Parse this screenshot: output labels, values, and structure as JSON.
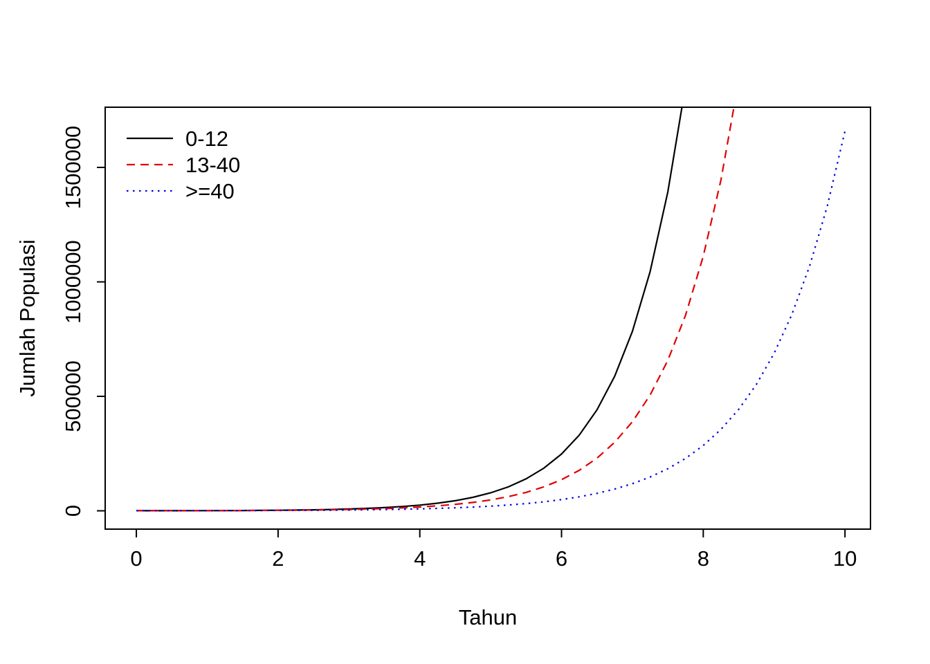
{
  "figure": {
    "background": "#ffffff",
    "axis_color": "#000000"
  },
  "chart_data": {
    "type": "line",
    "title": "",
    "xlabel": "Tahun",
    "ylabel": "Jumlah Populasi",
    "xlim": [
      -0.44,
      10.36
    ],
    "ylim": [
      -80000,
      1763000
    ],
    "x_ticks": [
      0,
      2,
      4,
      6,
      8,
      10
    ],
    "y_ticks": [
      0,
      500000,
      1000000,
      1500000
    ],
    "y_tick_labels": [
      "0",
      "500000",
      "1000000",
      "1500000"
    ],
    "grid": "off",
    "legend": {
      "position": "top-left"
    },
    "series": [
      {
        "name": "0-12",
        "color": "#000000",
        "linetype": "solid",
        "points": [
          [
            0,
            250
          ],
          [
            0.25,
            333
          ],
          [
            0.5,
            444
          ],
          [
            0.75,
            592
          ],
          [
            1,
            790
          ],
          [
            1.25,
            1053
          ],
          [
            1.5,
            1403
          ],
          [
            1.75,
            1870
          ],
          [
            2,
            2494
          ],
          [
            2.25,
            3324
          ],
          [
            2.5,
            4432
          ],
          [
            2.75,
            5908
          ],
          [
            3,
            7875
          ],
          [
            3.25,
            10498
          ],
          [
            3.5,
            13996
          ],
          [
            3.75,
            18657
          ],
          [
            4,
            24870
          ],
          [
            4.25,
            33156
          ],
          [
            4.5,
            44202
          ],
          [
            4.75,
            58928
          ],
          [
            5,
            78553
          ],
          [
            5.25,
            104716
          ],
          [
            5.5,
            139599
          ],
          [
            5.75,
            186106
          ],
          [
            6,
            248083
          ],
          [
            6.25,
            330721
          ],
          [
            6.5,
            440899
          ],
          [
            6.75,
            587771
          ],
          [
            7,
            783577
          ],
          [
            7.25,
            1044628
          ],
          [
            7.5,
            1392623
          ],
          [
            7.75,
            1856521
          ]
        ]
      },
      {
        "name": "13-40",
        "color": "#e00000",
        "linetype": "dashed",
        "points": [
          [
            0,
            250
          ],
          [
            0.25,
            325
          ],
          [
            0.5,
            423
          ],
          [
            0.75,
            549
          ],
          [
            1,
            714
          ],
          [
            1.25,
            929
          ],
          [
            1.5,
            1208
          ],
          [
            1.75,
            1570
          ],
          [
            2,
            2042
          ],
          [
            2.25,
            2654
          ],
          [
            2.5,
            3451
          ],
          [
            2.75,
            4487
          ],
          [
            3,
            5834
          ],
          [
            3.25,
            7585
          ],
          [
            3.5,
            9862
          ],
          [
            3.75,
            12822
          ],
          [
            4,
            16672
          ],
          [
            4.25,
            21676
          ],
          [
            4.5,
            28179
          ],
          [
            4.75,
            36643
          ],
          [
            5,
            47639
          ],
          [
            5.25,
            61941
          ],
          [
            5.5,
            80534
          ],
          [
            5.75,
            104712
          ],
          [
            6,
            136142
          ],
          [
            6.25,
            176950
          ],
          [
            6.5,
            230059
          ],
          [
            6.75,
            299085
          ],
          [
            7,
            388805
          ],
          [
            7.25,
            505444
          ],
          [
            7.5,
            657106
          ],
          [
            7.75,
            854270
          ],
          [
            8,
            1111770
          ],
          [
            8.25,
            1445305
          ],
          [
            8.5,
            1878869
          ]
        ]
      },
      {
        "name": ">=40",
        "color": "#0000dd",
        "linetype": "dotted",
        "points": [
          [
            0,
            250
          ],
          [
            0.25,
            312
          ],
          [
            0.5,
            388
          ],
          [
            0.75,
            484
          ],
          [
            1,
            603
          ],
          [
            1.25,
            751
          ],
          [
            1.5,
            936
          ],
          [
            1.75,
            1166
          ],
          [
            2,
            1453
          ],
          [
            2.25,
            1811
          ],
          [
            2.5,
            2256
          ],
          [
            2.75,
            2812
          ],
          [
            3,
            3503
          ],
          [
            3.25,
            4365
          ],
          [
            3.5,
            5439
          ],
          [
            3.75,
            6778
          ],
          [
            4,
            8445
          ],
          [
            4.25,
            10524
          ],
          [
            4.5,
            13114
          ],
          [
            4.75,
            16342
          ],
          [
            5,
            20363
          ],
          [
            5.25,
            25370
          ],
          [
            5.5,
            31617
          ],
          [
            5.75,
            39394
          ],
          [
            6,
            49096
          ],
          [
            6.25,
            61174
          ],
          [
            6.5,
            76235
          ],
          [
            6.75,
            94985
          ],
          [
            7,
            118369
          ],
          [
            7.25,
            147494
          ],
          [
            7.5,
            183776
          ],
          [
            7.75,
            228925
          ],
          [
            8,
            285400
          ],
          [
            8.25,
            355575
          ],
          [
            8.5,
            443025
          ],
          [
            8.75,
            552080
          ],
          [
            9,
            687852
          ],
          [
            9.25,
            857024
          ],
          [
            9.5,
            1067856
          ],
          [
            9.75,
            1330444
          ],
          [
            10,
            1658558
          ]
        ]
      }
    ]
  }
}
